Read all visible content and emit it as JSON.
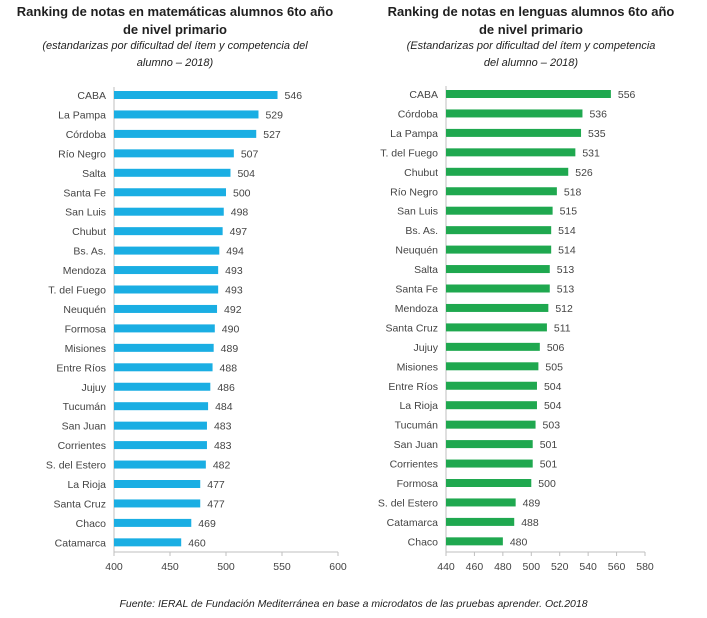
{
  "chart_data": [
    {
      "type": "bar",
      "orientation": "horizontal",
      "title": "Ranking de notas en matemáticas alumnos 6to año de nivel primario",
      "title_lines": [
        "Ranking de notas en matemáticas alumnos 6to año",
        "de nivel primario"
      ],
      "subtitle_lines": [
        "(estandarizas por dificultad del ítem y competencia del",
        "alumno – 2018)"
      ],
      "color": "#1aaee3",
      "categories": [
        "CABA",
        "La Pampa",
        "Córdoba",
        "Río Negro",
        "Salta",
        "Santa Fe",
        "San Luis",
        "Chubut",
        "Bs. As.",
        "Mendoza",
        "T. del Fuego",
        "Neuquén",
        "Formosa",
        "Misiones",
        "Entre Ríos",
        "Jujuy",
        "Tucumán",
        "San Juan",
        "Corrientes",
        "S. del Estero",
        "La Rioja",
        "Santa Cruz",
        "Chaco",
        "Catamarca"
      ],
      "values": [
        546,
        529,
        527,
        507,
        504,
        500,
        498,
        497,
        494,
        493,
        493,
        492,
        490,
        489,
        488,
        486,
        484,
        483,
        483,
        482,
        477,
        477,
        469,
        460
      ],
      "xlim": [
        400,
        600
      ],
      "xticks": [
        400,
        450,
        500,
        550,
        600
      ],
      "grid": false
    },
    {
      "type": "bar",
      "orientation": "horizontal",
      "title": "Ranking de notas en lenguas alumnos 6to año de nivel primario",
      "title_lines": [
        "Ranking de notas en lenguas alumnos 6to año",
        "de nivel primario"
      ],
      "subtitle_lines": [
        "(Estandarizas por dificultad del ítem y competencia",
        "del alumno – 2018)"
      ],
      "color": "#1fa84f",
      "categories": [
        "CABA",
        "Córdoba",
        "La Pampa",
        "T. del Fuego",
        "Chubut",
        "Río Negro",
        "San Luis",
        "Bs. As.",
        "Neuquén",
        "Salta",
        "Santa Fe",
        "Mendoza",
        "Santa Cruz",
        "Jujuy",
        "Misiones",
        "Entre Ríos",
        "La Rioja",
        "Tucumán",
        "San Juan",
        "Corrientes",
        "Formosa",
        "S. del Estero",
        "Catamarca",
        "Chaco"
      ],
      "values": [
        556,
        536,
        535,
        531,
        526,
        518,
        515,
        514,
        514,
        513,
        513,
        512,
        511,
        506,
        505,
        504,
        504,
        503,
        501,
        501,
        500,
        489,
        488,
        480
      ],
      "xlim": [
        440,
        580
      ],
      "xticks": [
        440,
        460,
        480,
        500,
        520,
        540,
        560,
        580
      ],
      "grid": false
    }
  ],
  "source": "Fuente: IERAL de Fundación Mediterránea en base a microdatos de las pruebas aprender. Oct.2018"
}
